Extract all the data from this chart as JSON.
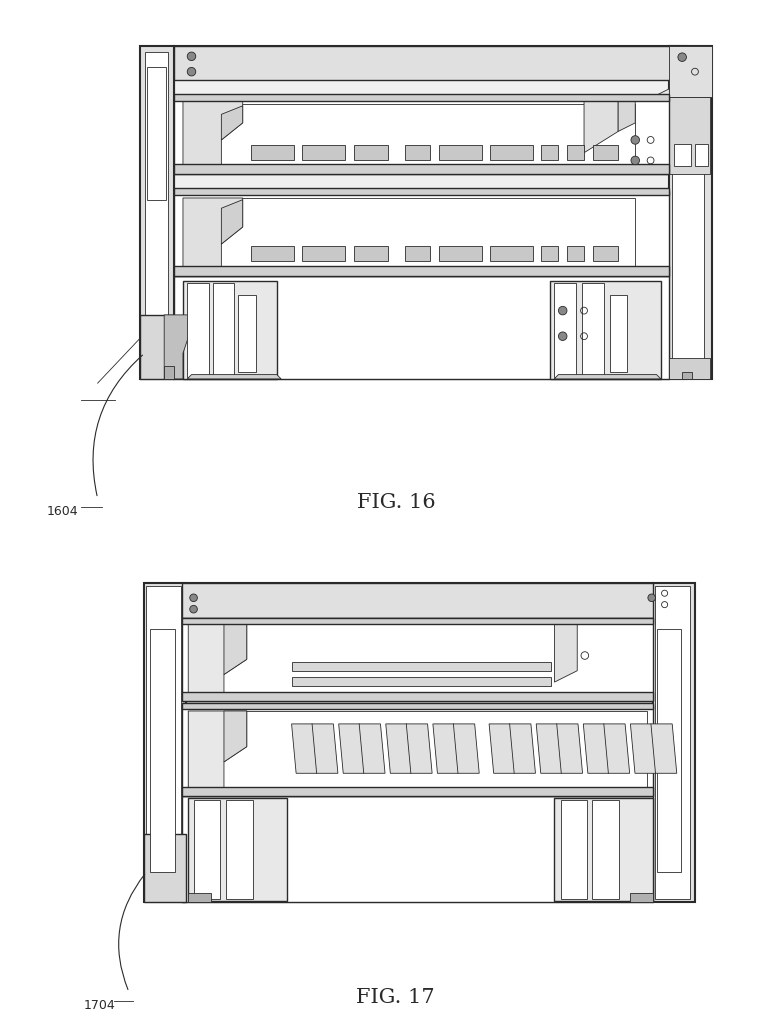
{
  "bg_color": "#ffffff",
  "lc": "#2a2a2a",
  "fig16_label": "FIG. 16",
  "fig17_label": "FIG. 17",
  "ref16": "1604",
  "ref17": "1704",
  "fig_width": 7.67,
  "fig_height": 10.24
}
